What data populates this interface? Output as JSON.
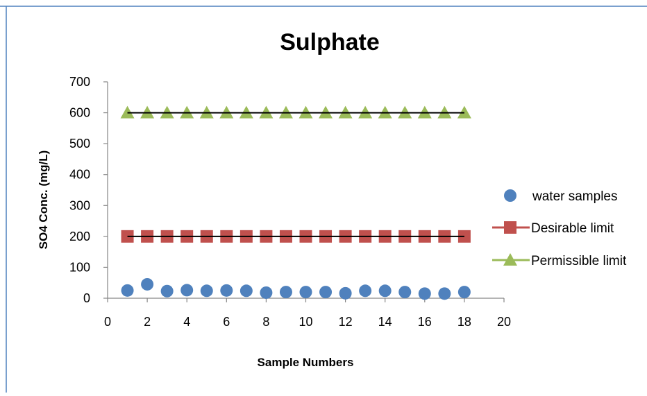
{
  "chart_data": {
    "type": "scatter",
    "title": "Sulphate",
    "xlabel": "Sample Numbers",
    "ylabel": "SO4 Conc. (mg/L)",
    "xlim": [
      0,
      20
    ],
    "ylim": [
      0,
      700
    ],
    "xticks": [
      0,
      2,
      4,
      6,
      8,
      10,
      12,
      14,
      16,
      18,
      20
    ],
    "yticks": [
      0,
      100,
      200,
      300,
      400,
      500,
      600,
      700
    ],
    "grid": false,
    "legend": "right",
    "series": [
      {
        "name": "water samples",
        "marker": "circle",
        "color": "#4f81bd",
        "line": false,
        "x": [
          1,
          2,
          3,
          4,
          5,
          6,
          7,
          8,
          9,
          10,
          11,
          12,
          13,
          14,
          15,
          16,
          17,
          18
        ],
        "y": [
          25,
          45,
          23,
          26,
          24,
          25,
          24,
          18,
          20,
          20,
          20,
          16,
          24,
          24,
          20,
          15,
          15,
          20
        ]
      },
      {
        "name": "Desirable limit",
        "marker": "square",
        "color": "#c0504d",
        "line": true,
        "x": [
          1,
          2,
          3,
          4,
          5,
          6,
          7,
          8,
          9,
          10,
          11,
          12,
          13,
          14,
          15,
          16,
          17,
          18
        ],
        "y": [
          200,
          200,
          200,
          200,
          200,
          200,
          200,
          200,
          200,
          200,
          200,
          200,
          200,
          200,
          200,
          200,
          200,
          200
        ]
      },
      {
        "name": "Permissible limit",
        "marker": "triangle",
        "color": "#9bbb59",
        "line": true,
        "x": [
          1,
          2,
          3,
          4,
          5,
          6,
          7,
          8,
          9,
          10,
          11,
          12,
          13,
          14,
          15,
          16,
          17,
          18
        ],
        "y": [
          600,
          600,
          600,
          600,
          600,
          600,
          600,
          600,
          600,
          600,
          600,
          600,
          600,
          600,
          600,
          600,
          600,
          600
        ]
      }
    ],
    "colors": {
      "axis": "#868686",
      "limit_line": "#000000",
      "frame_border": "#4f81bd"
    }
  }
}
